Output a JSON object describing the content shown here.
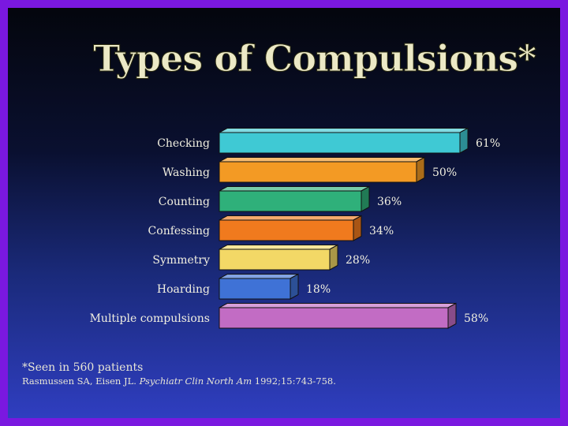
{
  "chart_data": {
    "type": "bar",
    "orientation": "horizontal",
    "title": "Types of Compulsions*",
    "categories": [
      "Checking",
      "Washing",
      "Counting",
      "Confessing",
      "Symmetry",
      "Hoarding",
      "Multiple compulsions"
    ],
    "values": [
      61,
      50,
      36,
      34,
      28,
      18,
      58
    ],
    "value_labels": [
      "61%",
      "50%",
      "36%",
      "34%",
      "28%",
      "18%",
      "58%"
    ],
    "unit": "%",
    "xlim": [
      0,
      61
    ],
    "grid": false,
    "colors": [
      "#3fc9d4",
      "#f39a24",
      "#2fb07a",
      "#f07a1e",
      "#f3d866",
      "#3f72d6",
      "#c26cc4"
    ]
  },
  "footnote": {
    "note": "*Seen in 560 patients",
    "citation_authors": "Rasmussen SA, Eisen JL.",
    "citation_journal": "Psychiatr Clin North Am",
    "citation_rest": "1992;15:743-758."
  }
}
